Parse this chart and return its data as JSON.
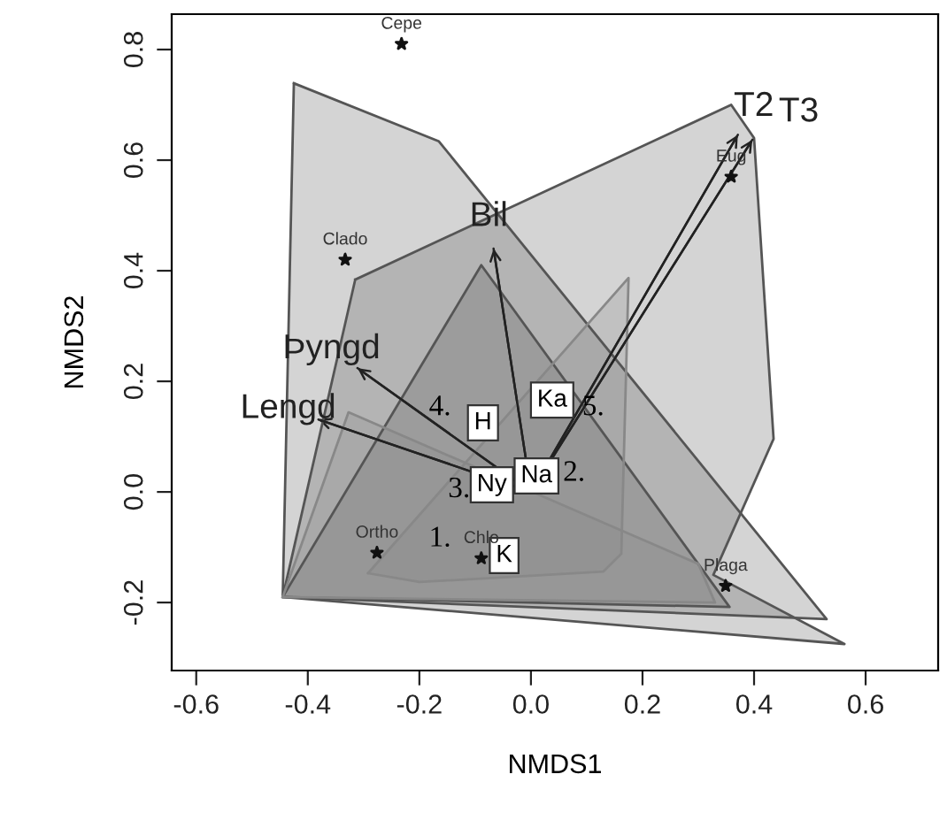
{
  "chart_data": {
    "type": "scatter",
    "xlabel": "NMDS1",
    "ylabel": "NMDS2",
    "xlim": [
      -0.644,
      0.73
    ],
    "ylim": [
      -0.323,
      0.864
    ],
    "xticks": [
      -0.6,
      -0.4,
      -0.2,
      {
        "value": 0,
        "label": "0.0"
      },
      0.2,
      0.4,
      0.6
    ],
    "yticks": [
      -0.2,
      {
        "value": 0,
        "label": "0.0"
      },
      0.2,
      0.4,
      0.6,
      0.8
    ],
    "grid": false,
    "legend": false,
    "series": [
      {
        "type": "area",
        "name": "4.",
        "color": "#555555",
        "x": [
          -0.425,
          -0.165,
          0.53,
          -0.445
        ],
        "values": [
          0.739,
          0.634,
          -0.23,
          -0.19
        ]
      },
      {
        "type": "area",
        "name": "5.",
        "color": "#555555",
        "x": [
          -0.315,
          0.359,
          0.4,
          0.435,
          0.327,
          0.562,
          -0.445
        ],
        "values": [
          0.384,
          0.7,
          0.64,
          0.096,
          -0.15,
          -0.275,
          -0.19
        ]
      },
      {
        "type": "area",
        "name": "3.",
        "color": "#555555",
        "x": [
          -0.445,
          -0.089,
          0.356
        ],
        "values": [
          -0.19,
          0.41,
          -0.208
        ]
      },
      {
        "type": "area",
        "name": "1.",
        "color": "#888888",
        "x": [
          -0.445,
          -0.327,
          0.3,
          0.33
        ],
        "values": [
          -0.19,
          0.144,
          -0.13,
          -0.2
        ]
      },
      {
        "type": "area",
        "name": "2.",
        "color": "#888888",
        "x": [
          -0.292,
          0.175,
          0.162,
          0.13,
          -0.2
        ],
        "values": [
          -0.147,
          0.387,
          -0.112,
          -0.144,
          -0.163
        ]
      },
      {
        "type": "line",
        "color": "#222222",
        "x": [
          0,
          -0.311
        ],
        "values": [
          0,
          0.224
        ],
        "value_labels": [
          null,
          "Þyngd"
        ]
      },
      {
        "type": "line",
        "color": "#222222",
        "x": [
          0,
          -0.381
        ],
        "values": [
          0,
          0.131
        ],
        "value_labels": [
          null,
          "Lengd"
        ]
      },
      {
        "type": "line",
        "color": "#222222",
        "x": [
          0,
          -0.067
        ],
        "values": [
          0,
          0.44
        ],
        "value_labels": [
          null,
          "Bil"
        ]
      },
      {
        "type": "line",
        "color": "#222222",
        "x": [
          0,
          0.371
        ],
        "values": [
          0,
          0.646
        ],
        "value_labels": [
          null,
          "T2"
        ]
      },
      {
        "type": "line",
        "color": "#222222",
        "x": [
          0,
          0.397
        ],
        "values": [
          0,
          0.637
        ],
        "value_labels": [
          null,
          "T3"
        ]
      },
      {
        "marker": "star",
        "color": "#111111",
        "x": [
          -0.232,
          -0.333,
          0.359,
          -0.276,
          -0.089,
          0.349
        ],
        "values": [
          0.81,
          0.42,
          0.57,
          -0.11,
          -0.12,
          -0.17
        ],
        "value_labels": [
          "Cepe",
          "Clado",
          "Eug",
          "Ortho",
          "Chlo",
          "Plaga"
        ]
      },
      {
        "marker": "square",
        "color": "#ffffff",
        "x": [
          -0.086,
          0.038,
          -0.07,
          0.01,
          -0.048
        ],
        "values": [
          0.125,
          0.166,
          0.013,
          0.029,
          -0.115
        ],
        "value_labels": [
          "H",
          "Ka",
          "Ny",
          "Na",
          "K"
        ]
      }
    ]
  }
}
